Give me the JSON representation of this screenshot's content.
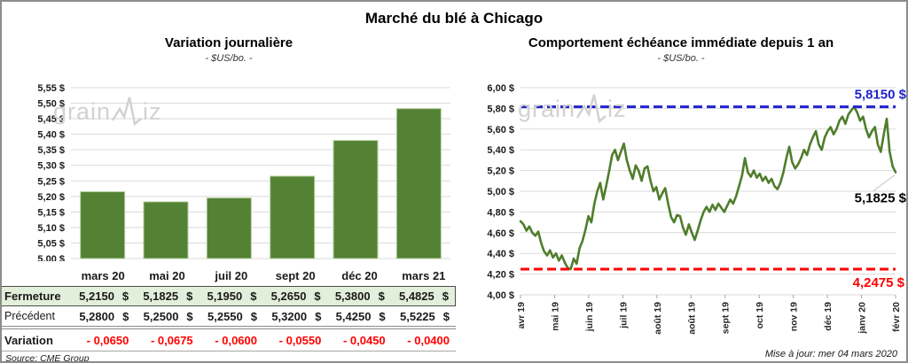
{
  "page": {
    "title": "Marché du blé à Chicago",
    "source": "Source: CME Group",
    "updated": "Mise à jour: mer 04 mars 2020"
  },
  "watermark": {
    "left": "grain",
    "right": "iz"
  },
  "colors": {
    "bar_green": "#548235",
    "bar_edge": "#b5cf9b",
    "line_green": "#4f7d2c",
    "max_blue": "#2222cc",
    "min_red": "#ff0000",
    "grid": "#d9d9d9",
    "fermeture_bg": "#e2efda",
    "leader_gray": "#c0c0c0"
  },
  "chart_data": [
    {
      "type": "bar",
      "title": "Variation journalière",
      "subtitle": "- $US/bo. -",
      "categories": [
        "mars 20",
        "mai 20",
        "juil 20",
        "sept 20",
        "déc 20",
        "mars 21"
      ],
      "values": [
        5.215,
        5.1825,
        5.195,
        5.265,
        5.38,
        5.4825
      ],
      "ylim": [
        5.0,
        5.55
      ],
      "ytick_step": 0.05,
      "yticks": [
        "5,00 $",
        "5,05 $",
        "5,10 $",
        "5,15 $",
        "5,20 $",
        "5,25 $",
        "5,30 $",
        "5,35 $",
        "5,40 $",
        "5,45 $",
        "5,50 $",
        "5,55 $"
      ],
      "grid": true,
      "legend": "none"
    },
    {
      "type": "line",
      "title": "Comportement échéance immédiate depuis 1 an",
      "subtitle": "- $US/bo. -",
      "x_labels": [
        "avr 19",
        "mai 19",
        "juin 19",
        "juil 19",
        "août 19",
        "août 19",
        "sept 19",
        "oct 19",
        "nov 19",
        "déc 19",
        "janv 20",
        "févr 20"
      ],
      "values": [
        4.71,
        4.68,
        4.62,
        4.66,
        4.6,
        4.57,
        4.61,
        4.5,
        4.42,
        4.38,
        4.43,
        4.36,
        4.4,
        4.33,
        4.38,
        4.31,
        4.26,
        4.2475,
        4.35,
        4.3,
        4.45,
        4.52,
        4.63,
        4.76,
        4.7,
        4.88,
        5.0,
        5.08,
        4.92,
        5.05,
        5.19,
        5.35,
        5.4,
        5.3,
        5.38,
        5.46,
        5.3,
        5.2,
        5.12,
        5.25,
        5.2,
        5.1,
        5.22,
        5.24,
        5.1,
        5.0,
        5.04,
        4.92,
        4.98,
        5.03,
        4.88,
        4.75,
        4.7,
        4.77,
        4.76,
        4.65,
        4.58,
        4.68,
        4.6,
        4.53,
        4.62,
        4.72,
        4.8,
        4.85,
        4.8,
        4.87,
        4.82,
        4.88,
        4.84,
        4.8,
        4.86,
        4.92,
        4.88,
        4.95,
        5.05,
        5.15,
        5.32,
        5.18,
        5.14,
        5.2,
        5.13,
        5.17,
        5.1,
        5.14,
        5.08,
        5.12,
        5.05,
        5.02,
        5.08,
        5.18,
        5.32,
        5.43,
        5.28,
        5.22,
        5.26,
        5.32,
        5.4,
        5.35,
        5.45,
        5.52,
        5.58,
        5.45,
        5.4,
        5.52,
        5.58,
        5.62,
        5.55,
        5.6,
        5.68,
        5.72,
        5.65,
        5.74,
        5.78,
        5.815,
        5.76,
        5.68,
        5.72,
        5.6,
        5.52,
        5.58,
        5.62,
        5.45,
        5.38,
        5.55,
        5.7,
        5.38,
        5.24,
        5.1825
      ],
      "ylim": [
        4.0,
        6.0
      ],
      "ytick_step": 0.2,
      "yticks": [
        "4,00 $",
        "4,20 $",
        "4,40 $",
        "4,60 $",
        "4,80 $",
        "5,00 $",
        "5,20 $",
        "5,40 $",
        "5,60 $",
        "5,80 $",
        "6,00 $"
      ],
      "max_line": {
        "value": 5.815,
        "label": "5,8150 $"
      },
      "min_line": {
        "value": 4.2475,
        "label": "4,2475 $"
      },
      "last_point": {
        "value": 5.1825,
        "label": "5,1825 $"
      },
      "grid": true,
      "legend": "none"
    }
  ],
  "table": {
    "col_headers": [
      "mars 20",
      "mai 20",
      "juil 20",
      "sept 20",
      "déc 20",
      "mars 21"
    ],
    "rows": [
      {
        "label": "Fermeture",
        "style": "fermeture",
        "currency": "$",
        "values": [
          "5,2150",
          "5,1825",
          "5,1950",
          "5,2650",
          "5,3800",
          "5,4825"
        ]
      },
      {
        "label": "Précédent",
        "style": "precedent",
        "currency": "$",
        "values": [
          "5,2800",
          "5,2500",
          "5,2550",
          "5,3200",
          "5,4250",
          "5,5225"
        ]
      },
      {
        "label": "Variation",
        "style": "variation",
        "currency": "",
        "values": [
          "- 0,0650",
          "- 0,0675",
          "- 0,0600",
          "- 0,0550",
          "- 0,0450",
          "- 0,0400"
        ]
      }
    ]
  }
}
